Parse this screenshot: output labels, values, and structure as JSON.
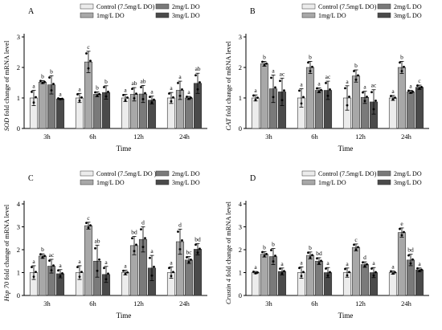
{
  "figure": {
    "panels": [
      "A",
      "B",
      "C",
      "D"
    ]
  },
  "chart_data": [
    {
      "panel_label": "A",
      "type": "bar",
      "categories": [
        "3h",
        "6h",
        "12h",
        "24h"
      ],
      "xlabel": "Time",
      "ylabel_gene": "SOD",
      "ylabel_rest": " fold change of mRNA level",
      "ylim": [
        0,
        3
      ],
      "yticks": [
        "0",
        "1",
        "2",
        "3"
      ],
      "legend_position": "top",
      "series": [
        {
          "name": "Control (7.5mg/L DO)",
          "color": "#ececec",
          "values": [
            1.0,
            1.0,
            1.0,
            1.0
          ],
          "errors": [
            0.25,
            0.15,
            0.12,
            0.18
          ],
          "letters": [
            "a",
            "a",
            "a",
            "a"
          ]
        },
        {
          "name": "1mg/L DO",
          "color": "#a8a8a8",
          "values": [
            1.52,
            2.18,
            1.12,
            1.25
          ],
          "errors": [
            0.05,
            0.35,
            0.22,
            0.3
          ],
          "letters": [
            "b",
            "c",
            "ab",
            "a"
          ]
        },
        {
          "name": "2mg/L DO",
          "color": "#7a7a7a",
          "values": [
            1.43,
            1.12,
            1.13,
            1.0
          ],
          "errors": [
            0.3,
            0.08,
            0.28,
            0.05
          ],
          "letters": [
            "b",
            "b",
            "ab",
            "a"
          ]
        },
        {
          "name": "3mg/L DO",
          "color": "#4a4a4a",
          "values": [
            0.97,
            1.18,
            0.93,
            1.48
          ],
          "errors": [
            0.02,
            0.22,
            0.13,
            0.33
          ],
          "letters": [
            "a",
            "b",
            "a",
            "ab"
          ]
        }
      ]
    },
    {
      "panel_label": "B",
      "type": "bar",
      "categories": [
        "3h",
        "6h",
        "12h",
        "24h"
      ],
      "xlabel": "Time",
      "ylabel_gene": "CAT",
      "ylabel_rest": " fold change of mRNA level",
      "ylim": [
        0,
        3
      ],
      "yticks": [
        "0",
        "1",
        "2",
        "3"
      ],
      "legend_position": "top",
      "series": [
        {
          "name": "Control (7.5mg/L DO)",
          "color": "#ececec",
          "values": [
            1.0,
            1.0,
            1.0,
            1.0
          ],
          "errors": [
            0.1,
            0.3,
            0.4,
            0.08
          ],
          "letters": [
            "a",
            "a",
            "a",
            "a"
          ]
        },
        {
          "name": "1mg/L DO",
          "color": "#a8a8a8",
          "values": [
            2.12,
            2.0,
            1.72,
            2.0
          ],
          "errors": [
            0.08,
            0.2,
            0.2,
            0.2
          ],
          "letters": [
            "b",
            "b",
            "b",
            "b"
          ]
        },
        {
          "name": "2mg/L DO",
          "color": "#7a7a7a",
          "values": [
            1.3,
            1.25,
            1.02,
            1.2
          ],
          "errors": [
            0.45,
            0.08,
            0.2,
            0.05
          ],
          "letters": [
            "a",
            "a",
            "a",
            "a"
          ]
        },
        {
          "name": "3mg/L DO",
          "color": "#4a4a4a",
          "values": [
            1.2,
            1.25,
            0.87,
            1.35
          ],
          "errors": [
            0.45,
            0.3,
            0.4,
            0.07
          ],
          "letters": [
            "ac",
            "ac",
            "ac",
            "c"
          ]
        }
      ]
    },
    {
      "panel_label": "C",
      "type": "bar",
      "categories": [
        "3h",
        "6h",
        "12h",
        "24h"
      ],
      "xlabel": "Time",
      "ylabel_gene": "Hsp 70",
      "ylabel_rest": "  fold change of mRNA level",
      "ylim": [
        0,
        4
      ],
      "yticks": [
        "0",
        "1",
        "2",
        "3",
        "4"
      ],
      "legend_position": "top",
      "series": [
        {
          "name": "Control (7.5mg/L DO )",
          "color": "#ececec",
          "values": [
            1.0,
            1.0,
            1.0,
            1.0
          ],
          "errors": [
            0.3,
            0.3,
            0.1,
            0.25
          ],
          "letters": [
            "a",
            "a",
            "a",
            "a"
          ]
        },
        {
          "name": "1mg/L DO",
          "color": "#a8a8a8",
          "values": [
            1.72,
            3.05,
            2.18,
            2.35
          ],
          "errors": [
            0.1,
            0.15,
            0.4,
            0.55
          ],
          "letters": [
            "b",
            "c",
            "bd",
            "d"
          ]
        },
        {
          "name": "2mg/L DO",
          "color": "#7a7a7a",
          "values": [
            1.28,
            1.5,
            2.45,
            1.55
          ],
          "errors": [
            0.3,
            0.7,
            0.55,
            0.15
          ],
          "letters": [
            "ac",
            "ab",
            "d",
            "bc"
          ]
        },
        {
          "name": "3mg/L DO",
          "color": "#4a4a4a",
          "values": [
            0.95,
            0.92,
            1.2,
            2.02
          ],
          "errors": [
            0.18,
            0.35,
            0.55,
            0.25
          ],
          "letters": [
            "a",
            "a",
            "a",
            "bd"
          ]
        }
      ]
    },
    {
      "panel_label": "D",
      "type": "bar",
      "categories": [
        "3h",
        "6h",
        "12h",
        "24h"
      ],
      "xlabel": "Time",
      "ylabel_gene": "Crustin 4",
      "ylabel_rest": "  fold change of mRNA level",
      "ylim": [
        0,
        4
      ],
      "yticks": [
        "0",
        "1",
        "2",
        "3",
        "4"
      ],
      "legend_position": "top",
      "series": [
        {
          "name": "Control (7.5mg/L DO)",
          "color": "#ececec",
          "values": [
            1.0,
            1.0,
            1.0,
            1.0
          ],
          "errors": [
            0.05,
            0.25,
            0.2,
            0.07
          ],
          "letters": [
            "a",
            "a",
            "a",
            "a"
          ]
        },
        {
          "name": "1mg/L DO",
          "color": "#a8a8a8",
          "values": [
            1.8,
            1.75,
            2.1,
            2.75
          ],
          "errors": [
            0.12,
            0.15,
            0.15,
            0.2
          ],
          "letters": [
            "b",
            "b",
            "c",
            "e"
          ]
        },
        {
          "name": "2mg/L DO",
          "color": "#7a7a7a",
          "values": [
            1.7,
            1.5,
            1.35,
            1.55
          ],
          "errors": [
            0.35,
            0.15,
            0.12,
            0.25
          ],
          "letters": [
            "b",
            "bd",
            "d",
            "bd"
          ]
        },
        {
          "name": "3mg/L DO",
          "color": "#4a4a4a",
          "values": [
            1.05,
            1.0,
            1.0,
            1.12
          ],
          "errors": [
            0.15,
            0.22,
            0.22,
            0.08
          ],
          "letters": [
            "a",
            "a",
            "a",
            "a"
          ]
        }
      ]
    }
  ]
}
